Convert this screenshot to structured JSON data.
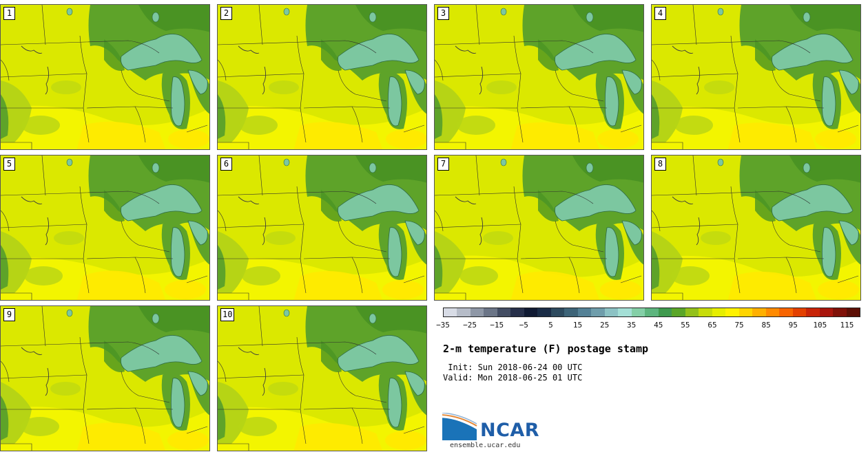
{
  "product": {
    "title": "2-m temperature (F) postage stamp",
    "init_text": " Init: Sun 2018-06-24 00 UTC",
    "valid_text": "Valid: Mon 2018-06-25 01 UTC"
  },
  "members": [
    {
      "label": "1"
    },
    {
      "label": "2"
    },
    {
      "label": "3"
    },
    {
      "label": "4"
    },
    {
      "label": "5"
    },
    {
      "label": "6"
    },
    {
      "label": "7"
    },
    {
      "label": "8"
    },
    {
      "label": "9"
    },
    {
      "label": "10"
    }
  ],
  "colorbar": {
    "units": "F",
    "min": -35,
    "max": 120,
    "step": 5,
    "tick_labels": [
      "-35",
      "-25",
      "-15",
      "-5",
      "5",
      "15",
      "25",
      "35",
      "45",
      "55",
      "65",
      "75",
      "85",
      "95",
      "105",
      "115"
    ],
    "colors": [
      "#d8dce6",
      "#b6bcc8",
      "#8e97a6",
      "#6b7587",
      "#434d63",
      "#27304a",
      "#101a33",
      "#1a2c46",
      "#2d4a5e",
      "#3d6478",
      "#548196",
      "#6f9dab",
      "#8cc2c4",
      "#a4dfd6",
      "#84cfa7",
      "#5db57e",
      "#3f9a4e",
      "#5aa628",
      "#93c11a",
      "#c7dc0a",
      "#e6ee00",
      "#fff200",
      "#ffd500",
      "#ffb000",
      "#ff8a00",
      "#f76400",
      "#e34000",
      "#c82408",
      "#a8150c",
      "#7f1108",
      "#5c0f05"
    ]
  },
  "colors": {
    "land_mid": "#dbe800",
    "land_warm": "#f3f500",
    "land_hot": "#ffea00",
    "land_cool": "#b6d415",
    "forest": "#5ea329",
    "forest_dark": "#4a9323",
    "lake": "#7cc7a0",
    "lake_edge": "#2f6b44"
  },
  "logo": {
    "name": "NCAR",
    "url": "ensemble.ucar.edu"
  }
}
